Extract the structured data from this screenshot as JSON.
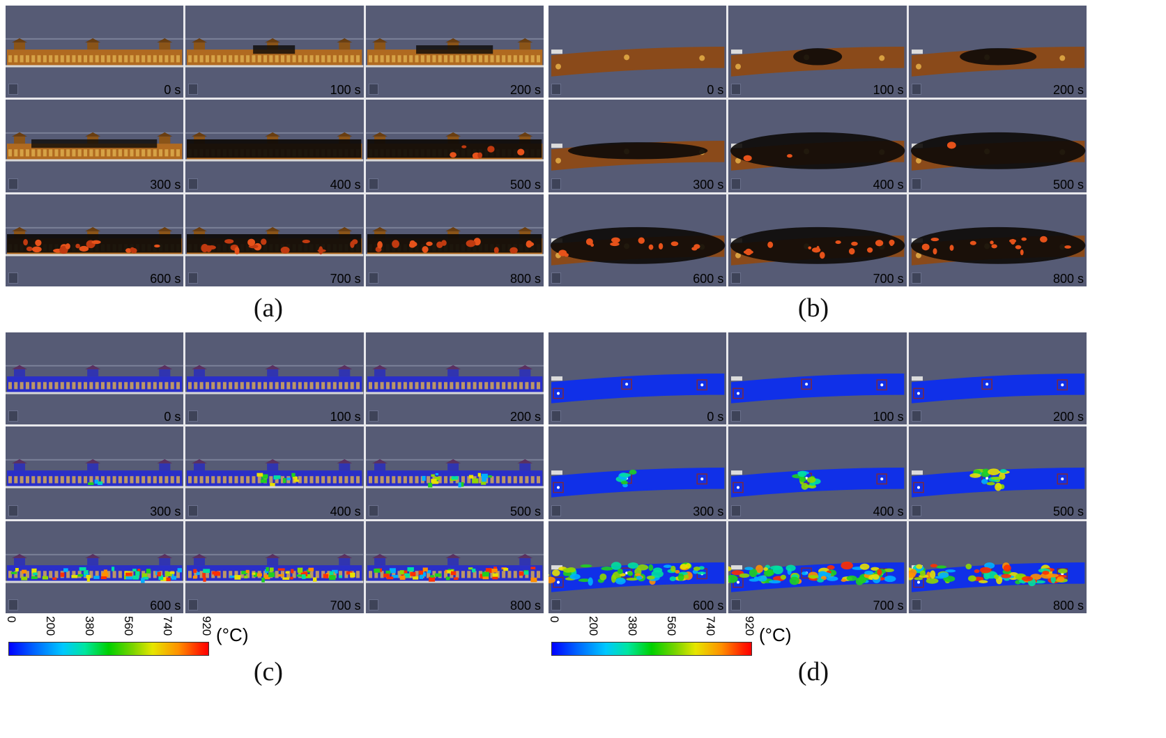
{
  "panels": [
    {
      "id": "a",
      "caption": "(a)",
      "style": "side-fire",
      "times": [
        "0 s",
        "100 s",
        "200 s",
        "300 s",
        "400 s",
        "500 s",
        "600 s",
        "700 s",
        "800 s"
      ]
    },
    {
      "id": "b",
      "caption": "(b)",
      "style": "top-fire",
      "times": [
        "0 s",
        "100 s",
        "200 s",
        "300 s",
        "400 s",
        "500 s",
        "600 s",
        "700 s",
        "800 s"
      ]
    },
    {
      "id": "c",
      "caption": "(c)",
      "style": "side-temp",
      "times": [
        "0 s",
        "100 s",
        "200 s",
        "300 s",
        "400 s",
        "500 s",
        "600 s",
        "700 s",
        "800 s"
      ]
    },
    {
      "id": "d",
      "caption": "(d)",
      "style": "top-temp",
      "times": [
        "0 s",
        "100 s",
        "200 s",
        "300 s",
        "400 s",
        "500 s",
        "600 s",
        "700 s",
        "800 s"
      ]
    }
  ],
  "colorbar": {
    "ticks": [
      "0",
      "200",
      "380",
      "560",
      "740",
      "920"
    ],
    "unit": "(°C)"
  },
  "colors": {
    "background": "#565b75",
    "wood": "#a8641e",
    "char": "#0d0a08",
    "flame": "#e6521a"
  }
}
